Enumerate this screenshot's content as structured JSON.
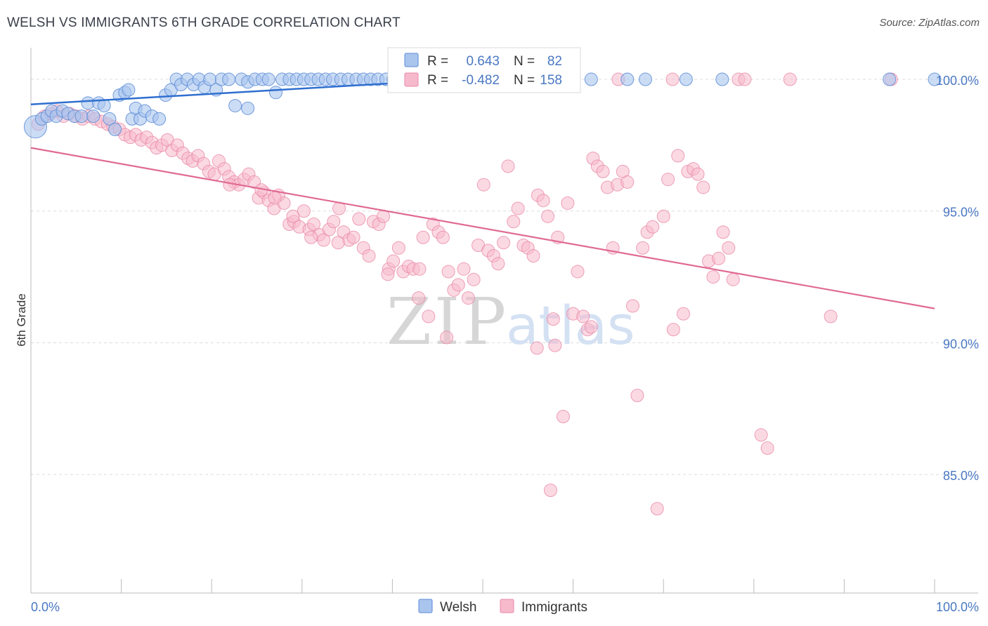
{
  "header": {
    "title": "WELSH VS IMMIGRANTS 6TH GRADE CORRELATION CHART",
    "source": "Source: ZipAtlas.com"
  },
  "watermark": {
    "zip": "ZIP",
    "atlas": "atlas"
  },
  "colors": {
    "welsh_fill": "#a9c5ee",
    "welsh_stroke": "#5b8bd6",
    "welsh_line": "#2f6fcf",
    "imm_fill": "#f7b9cc",
    "imm_stroke": "#e98aa8",
    "imm_line": "#e06a93",
    "tick_label": "#4a78c2",
    "grid": "#dcdcdc"
  },
  "legend": {
    "rows": [
      {
        "r_label": "R = ",
        "r_value": "0.643",
        "n_label": "N = ",
        "n_value": "82"
      },
      {
        "r_label": "R = ",
        "r_value": "-0.482",
        "n_label": "N = ",
        "n_value": "158"
      }
    ]
  },
  "chart_data": {
    "type": "scatter",
    "title": "WELSH VS IMMIGRANTS 6TH GRADE CORRELATION CHART",
    "ylabel": "6th Grade",
    "xlabel": "",
    "xlim": [
      0,
      100
    ],
    "ylim": [
      80.5,
      101.2
    ],
    "x_tick_labels": [
      "0.0%",
      "100.0%"
    ],
    "y_ticks": [
      85,
      90,
      95,
      100
    ],
    "y_tick_labels": [
      "85.0%",
      "90.0%",
      "95.0%",
      "100.0%"
    ],
    "grid": true,
    "legend_position": "top-center",
    "series": [
      {
        "name": "Welsh",
        "r": 0.643,
        "n": 82,
        "trend": {
          "x": [
            0,
            50
          ],
          "y": [
            99.05,
            100.05
          ]
        },
        "points": [
          [
            0.5,
            98.2
          ],
          [
            1.2,
            98.5
          ],
          [
            1.8,
            98.6
          ],
          [
            2.3,
            98.8
          ],
          [
            2.8,
            98.6
          ],
          [
            3.5,
            98.8
          ],
          [
            4.1,
            98.7
          ],
          [
            4.8,
            98.6
          ],
          [
            5.6,
            98.6
          ],
          [
            6.3,
            99.1
          ],
          [
            6.9,
            98.6
          ],
          [
            7.5,
            99.1
          ],
          [
            8.1,
            99.0
          ],
          [
            8.7,
            98.5
          ],
          [
            9.3,
            98.1
          ],
          [
            9.8,
            99.4
          ],
          [
            10.4,
            99.5
          ],
          [
            10.8,
            99.6
          ],
          [
            11.2,
            98.5
          ],
          [
            11.6,
            98.9
          ],
          [
            12.1,
            98.5
          ],
          [
            12.6,
            98.8
          ],
          [
            13.4,
            98.6
          ],
          [
            14.2,
            98.5
          ],
          [
            14.9,
            99.4
          ],
          [
            15.5,
            99.6
          ],
          [
            16.1,
            100.0
          ],
          [
            16.6,
            99.8
          ],
          [
            17.3,
            100.0
          ],
          [
            18.0,
            99.8
          ],
          [
            18.6,
            100.0
          ],
          [
            19.2,
            99.7
          ],
          [
            19.8,
            100.0
          ],
          [
            20.5,
            99.6
          ],
          [
            21.1,
            100.0
          ],
          [
            21.9,
            100.0
          ],
          [
            22.6,
            99.0
          ],
          [
            23.3,
            100.0
          ],
          [
            24.0,
            99.9
          ],
          [
            24.8,
            100.0
          ],
          [
            25.6,
            100.0
          ],
          [
            26.3,
            100.0
          ],
          [
            27.1,
            99.5
          ],
          [
            27.8,
            100.0
          ],
          [
            28.6,
            100.0
          ],
          [
            29.4,
            100.0
          ],
          [
            30.2,
            100.0
          ],
          [
            31.0,
            100.0
          ],
          [
            31.8,
            100.0
          ],
          [
            32.6,
            100.0
          ],
          [
            33.4,
            100.0
          ],
          [
            34.3,
            100.0
          ],
          [
            35.1,
            100.0
          ],
          [
            36.0,
            100.0
          ],
          [
            36.8,
            100.0
          ],
          [
            37.6,
            100.0
          ],
          [
            38.4,
            100.0
          ],
          [
            39.3,
            100.0
          ],
          [
            40.1,
            100.0
          ],
          [
            41.0,
            100.0
          ],
          [
            41.8,
            100.0
          ],
          [
            42.6,
            100.0
          ],
          [
            43.5,
            100.0
          ],
          [
            44.4,
            100.0
          ],
          [
            45.3,
            100.0
          ],
          [
            46.2,
            100.0
          ],
          [
            47.1,
            100.0
          ],
          [
            48.0,
            100.0
          ],
          [
            48.9,
            100.0
          ],
          [
            49.8,
            100.0
          ],
          [
            50.7,
            100.0
          ],
          [
            51.6,
            100.0
          ],
          [
            52.5,
            100.0
          ],
          [
            53.3,
            100.0
          ],
          [
            54.2,
            100.0
          ],
          [
            57.0,
            100.0
          ],
          [
            62.0,
            100.0
          ],
          [
            66.0,
            100.0
          ],
          [
            68.0,
            100.0
          ],
          [
            72.5,
            100.0
          ],
          [
            76.5,
            100.0
          ],
          [
            95.0,
            100.0
          ],
          [
            100.0,
            100.0
          ],
          [
            24.0,
            98.9
          ]
        ]
      },
      {
        "name": "Immigrants",
        "r": -0.482,
        "n": 158,
        "trend": {
          "x": [
            0,
            100
          ],
          "y": [
            97.4,
            91.3
          ]
        },
        "points": [
          [
            0.8,
            98.3
          ],
          [
            1.5,
            98.6
          ],
          [
            2.2,
            98.7
          ],
          [
            2.9,
            98.8
          ],
          [
            3.6,
            98.6
          ],
          [
            4.3,
            98.7
          ],
          [
            5.0,
            98.6
          ],
          [
            5.7,
            98.5
          ],
          [
            6.4,
            98.6
          ],
          [
            7.1,
            98.5
          ],
          [
            7.8,
            98.4
          ],
          [
            8.5,
            98.3
          ],
          [
            9.1,
            98.2
          ],
          [
            9.8,
            98.1
          ],
          [
            10.4,
            97.9
          ],
          [
            11.0,
            97.8
          ],
          [
            11.6,
            97.9
          ],
          [
            12.2,
            97.7
          ],
          [
            12.8,
            97.8
          ],
          [
            13.4,
            97.6
          ],
          [
            13.9,
            97.4
          ],
          [
            14.5,
            97.5
          ],
          [
            15.1,
            97.7
          ],
          [
            15.6,
            97.3
          ],
          [
            16.2,
            97.5
          ],
          [
            16.8,
            97.2
          ],
          [
            17.4,
            97.0
          ],
          [
            17.9,
            96.9
          ],
          [
            18.5,
            97.1
          ],
          [
            19.1,
            96.8
          ],
          [
            19.7,
            96.5
          ],
          [
            20.3,
            96.4
          ],
          [
            20.8,
            96.9
          ],
          [
            21.4,
            96.6
          ],
          [
            21.9,
            96.3
          ],
          [
            22.5,
            96.1
          ],
          [
            23.0,
            96.0
          ],
          [
            23.6,
            96.2
          ],
          [
            24.1,
            96.4
          ],
          [
            24.7,
            96.1
          ],
          [
            25.2,
            95.5
          ],
          [
            25.8,
            95.7
          ],
          [
            26.3,
            95.4
          ],
          [
            26.9,
            95.1
          ],
          [
            27.4,
            95.6
          ],
          [
            28.0,
            95.3
          ],
          [
            28.6,
            94.5
          ],
          [
            29.1,
            94.6
          ],
          [
            29.7,
            94.4
          ],
          [
            30.2,
            95.0
          ],
          [
            30.8,
            94.3
          ],
          [
            31.3,
            94.5
          ],
          [
            31.9,
            94.1
          ],
          [
            32.4,
            93.9
          ],
          [
            33.0,
            94.3
          ],
          [
            33.5,
            94.6
          ],
          [
            34.1,
            95.1
          ],
          [
            34.6,
            94.2
          ],
          [
            35.2,
            93.9
          ],
          [
            35.7,
            94.0
          ],
          [
            36.3,
            94.7
          ],
          [
            36.8,
            93.6
          ],
          [
            37.4,
            93.3
          ],
          [
            37.9,
            94.6
          ],
          [
            38.5,
            94.5
          ],
          [
            39.0,
            94.8
          ],
          [
            39.6,
            92.8
          ],
          [
            40.1,
            93.1
          ],
          [
            40.7,
            93.6
          ],
          [
            41.2,
            92.7
          ],
          [
            41.8,
            92.9
          ],
          [
            42.3,
            92.8
          ],
          [
            42.9,
            91.7
          ],
          [
            43.4,
            94.0
          ],
          [
            44.0,
            91.0
          ],
          [
            44.5,
            94.5
          ],
          [
            45.1,
            94.2
          ],
          [
            45.6,
            94.0
          ],
          [
            46.2,
            92.7
          ],
          [
            46.8,
            92.0
          ],
          [
            47.3,
            92.2
          ],
          [
            47.9,
            92.8
          ],
          [
            48.4,
            91.7
          ],
          [
            49.0,
            92.4
          ],
          [
            49.5,
            93.7
          ],
          [
            50.1,
            96.0
          ],
          [
            50.6,
            93.5
          ],
          [
            51.2,
            93.3
          ],
          [
            51.7,
            93.0
          ],
          [
            52.3,
            93.8
          ],
          [
            52.8,
            96.7
          ],
          [
            53.4,
            94.6
          ],
          [
            53.9,
            95.1
          ],
          [
            54.5,
            93.7
          ],
          [
            55.0,
            93.6
          ],
          [
            55.6,
            93.3
          ],
          [
            56.1,
            95.6
          ],
          [
            56.7,
            95.4
          ],
          [
            57.2,
            94.8
          ],
          [
            57.8,
            90.9
          ],
          [
            58.3,
            94.0
          ],
          [
            58.9,
            87.2
          ],
          [
            59.4,
            95.3
          ],
          [
            60.0,
            91.1
          ],
          [
            60.5,
            92.7
          ],
          [
            61.1,
            91.0
          ],
          [
            61.6,
            90.5
          ],
          [
            62.2,
            97.0
          ],
          [
            62.7,
            96.7
          ],
          [
            63.3,
            96.5
          ],
          [
            63.8,
            95.9
          ],
          [
            64.4,
            93.6
          ],
          [
            64.9,
            96.0
          ],
          [
            65.5,
            96.5
          ],
          [
            66.0,
            96.1
          ],
          [
            66.6,
            91.4
          ],
          [
            67.1,
            88.0
          ],
          [
            67.7,
            93.6
          ],
          [
            68.2,
            94.2
          ],
          [
            68.8,
            94.4
          ],
          [
            69.3,
            83.7
          ],
          [
            70.0,
            94.8
          ],
          [
            70.5,
            96.2
          ],
          [
            71.1,
            90.5
          ],
          [
            71.6,
            97.1
          ],
          [
            72.2,
            91.1
          ],
          [
            72.7,
            96.5
          ],
          [
            73.3,
            96.6
          ],
          [
            73.8,
            96.4
          ],
          [
            74.4,
            95.9
          ],
          [
            75.0,
            93.1
          ],
          [
            75.5,
            92.5
          ],
          [
            76.1,
            93.2
          ],
          [
            76.6,
            94.2
          ],
          [
            77.2,
            93.6
          ],
          [
            77.7,
            92.4
          ],
          [
            78.3,
            100.0
          ],
          [
            79.0,
            100.0
          ],
          [
            80.8,
            86.5
          ],
          [
            81.5,
            86.0
          ],
          [
            84.0,
            100.0
          ],
          [
            88.5,
            91.0
          ],
          [
            95.2,
            100.0
          ],
          [
            65.0,
            100.0
          ],
          [
            71.0,
            100.0
          ],
          [
            56.0,
            89.8
          ],
          [
            58.0,
            89.9
          ],
          [
            46.0,
            90.2
          ],
          [
            57.5,
            84.4
          ],
          [
            62.0,
            90.6
          ],
          [
            31.0,
            94.0
          ],
          [
            34.0,
            93.8
          ],
          [
            29.0,
            94.8
          ],
          [
            27.0,
            95.5
          ],
          [
            39.5,
            92.6
          ],
          [
            43.0,
            92.8
          ],
          [
            25.5,
            95.8
          ],
          [
            22.0,
            96.0
          ]
        ]
      }
    ]
  }
}
